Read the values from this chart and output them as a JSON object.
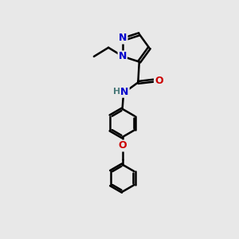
{
  "bg_color": "#e8e8e8",
  "bond_color": "#000000",
  "N_color": "#0000cc",
  "O_color": "#cc0000",
  "line_width": 1.8,
  "font_size_atom": 9,
  "fig_width": 3.0,
  "fig_height": 3.0,
  "dpi": 100,
  "xlim": [
    0,
    10
  ],
  "ylim": [
    0,
    10
  ]
}
